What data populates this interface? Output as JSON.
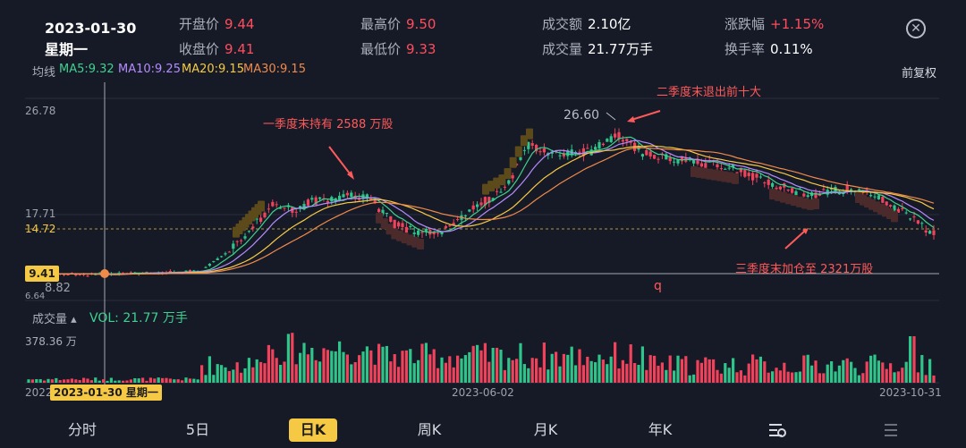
{
  "header": {
    "date": "2023-01-30",
    "weekday": "星期一",
    "open_label": "开盘价",
    "open": "9.44",
    "close_label": "收盘价",
    "close": "9.41",
    "high_label": "最高价",
    "high": "9.50",
    "low_label": "最低价",
    "low": "9.33",
    "amount_label": "成交额",
    "amount": "2.10亿",
    "volume_label": "成交量",
    "volume": "21.77万手",
    "change_label": "涨跌幅",
    "change": "+1.15%",
    "turnover_label": "换手率",
    "turnover": "0.11%"
  },
  "ma": {
    "label": "均线",
    "ma5": "MA5:9.32",
    "ma10": "MA10:9.25",
    "ma20": "MA20:9.15",
    "ma30": "MA30:9.15",
    "colors": {
      "ma5": "#3fd18f",
      "ma10": "#b58cff",
      "ma20": "#f6c945",
      "ma30": "#f08a4b"
    }
  },
  "adjust_label": "前复权",
  "axis": {
    "price_top": "26.78",
    "price_mid": "17.71",
    "price_ref": "14.72",
    "price_low": "8.82",
    "price_bottom": "6.64",
    "current_price": "9.41",
    "date_start": "2022",
    "date_mid": "2023-06-02",
    "date_end": "2023-10-31",
    "cursor_date": "2023-01-30 星期一",
    "peak_value": "26.60",
    "low_marker": "q"
  },
  "annotations": {
    "q1": "一季度末持有 2588 万股",
    "q2": "二季度末退出前十大",
    "q3": "三季度末加仓至 2321万股"
  },
  "volume": {
    "header": "成交量",
    "value": "VOL: 21.77 万手",
    "max": "378.36 万"
  },
  "tabs": [
    "分时",
    "5日",
    "日K",
    "周K",
    "月K",
    "年K"
  ],
  "active_tab": "日K",
  "colors": {
    "up": "#f0425a",
    "down": "#2fc58a",
    "accent": "#f6c945",
    "bg": "#161a26"
  }
}
